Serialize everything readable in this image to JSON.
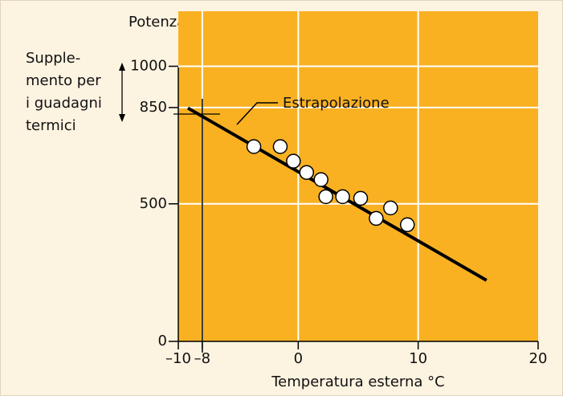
{
  "chart_data": {
    "type": "scatter",
    "ylabel": "Potenza in kW",
    "xlabel": "Temperatura esterna °C",
    "annotation": "Estrapolazione",
    "side_note": [
      "Supple-",
      "mento per",
      "i guadagni",
      "termici"
    ],
    "xlim": [
      -10,
      20
    ],
    "ylim": [
      0,
      1200
    ],
    "xticks": [
      {
        "value": -10,
        "label": "–10"
      },
      {
        "value": -8,
        "label": "–8"
      },
      0,
      10,
      20
    ],
    "yticks": [
      0,
      500,
      850,
      1000
    ],
    "grid": true,
    "reference_line": {
      "x": -8
    },
    "plot_color": "#f9b122",
    "series": [
      {
        "color": "#ffffff",
        "x": [
          -3.7,
          -1.5,
          -0.4,
          0.7,
          1.9,
          2.3,
          3.7,
          5.2,
          6.5,
          7.7,
          9.1
        ],
        "values": [
          708,
          708,
          655,
          614,
          588,
          526,
          526,
          520,
          447,
          485,
          424
        ]
      },
      {
        "color": "#000000",
        "line": true,
        "x": [
          -9.2,
          15.7
        ],
        "values": [
          848,
          222
        ]
      }
    ]
  }
}
